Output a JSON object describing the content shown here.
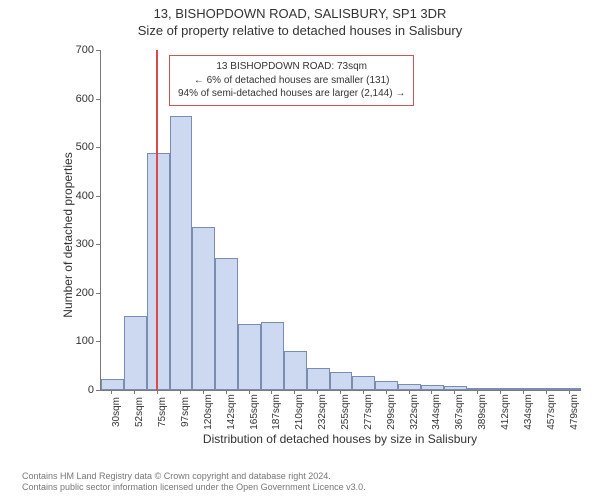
{
  "title_main": "13, BISHOPDOWN ROAD, SALISBURY, SP1 3DR",
  "title_sub": "Size of property relative to detached houses in Salisbury",
  "chart": {
    "type": "histogram",
    "y_label": "Number of detached properties",
    "x_label": "Distribution of detached houses by size in Salisbury",
    "ylim": [
      0,
      700
    ],
    "ytick_step": 100,
    "y_ticks": [
      0,
      100,
      200,
      300,
      400,
      500,
      600,
      700
    ],
    "x_categories": [
      "30sqm",
      "52sqm",
      "75sqm",
      "97sqm",
      "120sqm",
      "142sqm",
      "165sqm",
      "187sqm",
      "210sqm",
      "232sqm",
      "255sqm",
      "277sqm",
      "299sqm",
      "322sqm",
      "344sqm",
      "367sqm",
      "389sqm",
      "412sqm",
      "434sqm",
      "457sqm",
      "479sqm"
    ],
    "bar_values": [
      23,
      153,
      487,
      565,
      335,
      272,
      135,
      140,
      80,
      45,
      38,
      28,
      18,
      12,
      10,
      8,
      5,
      4,
      3,
      2,
      1
    ],
    "bar_fill": "#cdd9f0",
    "bar_stroke": "#7a8db0",
    "marker_value_sqm": 73,
    "marker_color": "#d94a4a",
    "background_color": "#ffffff",
    "axis_color": "#7a7a7a",
    "bar_width_ratio": 1.0,
    "axis_fontsize": 11,
    "label_fontsize": 12,
    "title_fontsize": 13
  },
  "annotation": {
    "line1": "13 BISHOPDOWN ROAD: 73sqm",
    "line2": "← 6% of detached houses are smaller (131)",
    "line3": "94% of semi-detached houses are larger (2,144) →",
    "border_color": "#cc5555"
  },
  "footer": {
    "line1": "Contains HM Land Registry data © Crown copyright and database right 2024.",
    "line2": "Contains public sector information licensed under the Open Government Licence v3.0."
  }
}
